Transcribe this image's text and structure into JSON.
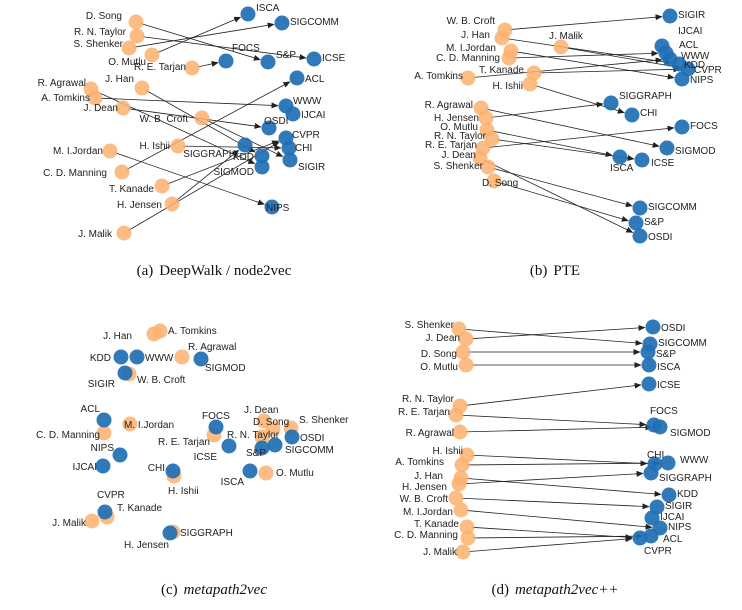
{
  "colors": {
    "author": "#fbb06e",
    "venue": "#1f6fb4",
    "edge": "#222222"
  },
  "panels": [
    {
      "caption_prefix": "(a)",
      "caption": "DeepWalk / node2vec",
      "caption_italic": false,
      "nodes": [
        {
          "id": "a_dsong",
          "label": "D. Song",
          "type": "author"
        },
        {
          "id": "a_rnt",
          "label": "R. N. Taylor",
          "type": "author"
        },
        {
          "id": "a_ssh",
          "label": "S. Shenker",
          "type": "author"
        },
        {
          "id": "a_om",
          "label": "O. Mutlu",
          "type": "author"
        },
        {
          "id": "a_ret",
          "label": "R. E. Tarjan",
          "type": "author"
        },
        {
          "id": "a_jh",
          "label": "J. Han",
          "type": "author"
        },
        {
          "id": "a_ra",
          "label": "R. Agrawal",
          "type": "author"
        },
        {
          "id": "a_at",
          "label": "A. Tomkins",
          "type": "author"
        },
        {
          "id": "a_jd",
          "label": "J. Dean",
          "type": "author"
        },
        {
          "id": "a_wbc",
          "label": "W. B. Croft",
          "type": "author"
        },
        {
          "id": "a_mij",
          "label": "M. I.Jordan",
          "type": "author"
        },
        {
          "id": "a_hi",
          "label": "H. Ishii",
          "type": "author"
        },
        {
          "id": "a_cdm",
          "label": "C. D. Manning",
          "type": "author"
        },
        {
          "id": "a_tk",
          "label": "T. Kanade",
          "type": "author"
        },
        {
          "id": "a_hj",
          "label": "H. Jensen",
          "type": "author"
        },
        {
          "id": "a_jm",
          "label": "J. Malik",
          "type": "author"
        },
        {
          "id": "v_isca",
          "label": "ISCA",
          "type": "venue"
        },
        {
          "id": "v_sigcomm",
          "label": "SIGCOMM",
          "type": "venue"
        },
        {
          "id": "v_focs",
          "label": "FOCS",
          "type": "venue"
        },
        {
          "id": "v_sp",
          "label": "S&P",
          "type": "venue"
        },
        {
          "id": "v_icse",
          "label": "ICSE",
          "type": "venue"
        },
        {
          "id": "v_acl",
          "label": "ACL",
          "type": "venue"
        },
        {
          "id": "v_www",
          "label": "WWW",
          "type": "venue"
        },
        {
          "id": "v_ijcai",
          "label": "IJCAI",
          "type": "venue"
        },
        {
          "id": "v_osdi",
          "label": "OSDI",
          "type": "venue"
        },
        {
          "id": "v_cvpr",
          "label": "CVPR",
          "type": "venue"
        },
        {
          "id": "v_chi",
          "label": "CHI",
          "type": "venue"
        },
        {
          "id": "v_siggraph",
          "label": "SIGGRAPH",
          "type": "venue"
        },
        {
          "id": "v_kdd",
          "label": "KDD",
          "type": "venue"
        },
        {
          "id": "v_sigmod",
          "label": "SIGMOD",
          "type": "venue"
        },
        {
          "id": "v_sigir",
          "label": "SIGIR",
          "type": "venue"
        },
        {
          "id": "v_nips",
          "label": "NIPS",
          "type": "venue"
        }
      ]
    },
    {
      "caption_prefix": "(b)",
      "caption": "PTE",
      "caption_italic": false,
      "nodes": [
        {
          "id": "a_wbc",
          "label": "W. B. Croft",
          "type": "author"
        },
        {
          "id": "a_jh",
          "label": "J. Han",
          "type": "author"
        },
        {
          "id": "a_mij",
          "label": "M. I.Jordan",
          "type": "author"
        },
        {
          "id": "a_cdm",
          "label": "C. D. Manning",
          "type": "author"
        },
        {
          "id": "a_jm",
          "label": "J. Malik",
          "type": "author"
        },
        {
          "id": "a_at",
          "label": "A. Tomkins",
          "type": "author"
        },
        {
          "id": "a_tk",
          "label": "T. Kanade",
          "type": "author"
        },
        {
          "id": "a_hi",
          "label": "H. Ishii",
          "type": "author"
        },
        {
          "id": "a_ra",
          "label": "R. Agrawal",
          "type": "author"
        },
        {
          "id": "a_hj",
          "label": "H. Jensen",
          "type": "author"
        },
        {
          "id": "a_om",
          "label": "O. Mutlu",
          "type": "author"
        },
        {
          "id": "a_rnt",
          "label": "R. N. Taylor",
          "type": "author"
        },
        {
          "id": "a_ret",
          "label": "R. E. Tarjan",
          "type": "author"
        },
        {
          "id": "a_jd",
          "label": "J. Dean",
          "type": "author"
        },
        {
          "id": "a_ssh",
          "label": "S. Shenker",
          "type": "author"
        },
        {
          "id": "a_dsong",
          "label": "D. Song",
          "type": "author"
        },
        {
          "id": "v_sigir",
          "label": "SIGIR",
          "type": "venue"
        },
        {
          "id": "v_ijcai",
          "label": "IJCAI",
          "type": "venue"
        },
        {
          "id": "v_acl",
          "label": "ACL",
          "type": "venue"
        },
        {
          "id": "v_www",
          "label": "WWW",
          "type": "venue"
        },
        {
          "id": "v_kdd",
          "label": "KDD",
          "type": "venue"
        },
        {
          "id": "v_cvpr",
          "label": "CVPR",
          "type": "venue"
        },
        {
          "id": "v_nips",
          "label": "NIPS",
          "type": "venue"
        },
        {
          "id": "v_siggraph",
          "label": "SIGGRAPH",
          "type": "venue"
        },
        {
          "id": "v_chi",
          "label": "CHI",
          "type": "venue"
        },
        {
          "id": "v_focs",
          "label": "FOCS",
          "type": "venue"
        },
        {
          "id": "v_isca",
          "label": "ISCA",
          "type": "venue"
        },
        {
          "id": "v_icse",
          "label": "ICSE",
          "type": "venue"
        },
        {
          "id": "v_sigmod",
          "label": "SIGMOD",
          "type": "venue"
        },
        {
          "id": "v_sigcomm",
          "label": "SIGCOMM",
          "type": "venue"
        },
        {
          "id": "v_sp",
          "label": "S&P",
          "type": "venue"
        },
        {
          "id": "v_osdi",
          "label": "OSDI",
          "type": "venue"
        }
      ]
    },
    {
      "caption_prefix": "(c)",
      "caption": "metapath2vec",
      "caption_italic": true,
      "nodes": [
        {
          "id": "a_jh",
          "label": "J. Han",
          "type": "author"
        },
        {
          "id": "a_at",
          "label": "A. Tomkins",
          "type": "author"
        },
        {
          "id": "a_ra",
          "label": "R. Agrawal",
          "type": "author"
        },
        {
          "id": "v_kdd",
          "label": "KDD",
          "type": "venue"
        },
        {
          "id": "v_www",
          "label": "WWW",
          "type": "venue"
        },
        {
          "id": "v_sigmod",
          "label": "SIGMOD",
          "type": "venue"
        },
        {
          "id": "v_sigir",
          "label": "SIGIR",
          "type": "venue"
        },
        {
          "id": "a_wbc",
          "label": "W. B. Croft",
          "type": "author"
        },
        {
          "id": "v_acl",
          "label": "ACL",
          "type": "venue"
        },
        {
          "id": "a_mij",
          "label": "M. I.Jordan",
          "type": "author"
        },
        {
          "id": "a_cdm",
          "label": "C. D. Manning",
          "type": "author"
        },
        {
          "id": "v_nips",
          "label": "NIPS",
          "type": "venue"
        },
        {
          "id": "v_ijcai",
          "label": "IJCAI",
          "type": "venue"
        },
        {
          "id": "v_focs",
          "label": "FOCS",
          "type": "venue"
        },
        {
          "id": "a_ret",
          "label": "R. E. Tarjan",
          "type": "author"
        },
        {
          "id": "a_jd",
          "label": "J. Dean",
          "type": "author"
        },
        {
          "id": "a_dsong",
          "label": "D. Song",
          "type": "author"
        },
        {
          "id": "a_rnt",
          "label": "R. N. Taylor",
          "type": "author"
        },
        {
          "id": "a_ssh",
          "label": "S. Shenker",
          "type": "author"
        },
        {
          "id": "v_osdi",
          "label": "OSDI",
          "type": "venue"
        },
        {
          "id": "v_icse",
          "label": "ICSE",
          "type": "venue"
        },
        {
          "id": "v_sp",
          "label": "S&P",
          "type": "venue"
        },
        {
          "id": "v_sigcomm",
          "label": "SIGCOMM",
          "type": "venue"
        },
        {
          "id": "v_chi",
          "label": "CHI",
          "type": "venue"
        },
        {
          "id": "a_hi",
          "label": "H. Ishii",
          "type": "author"
        },
        {
          "id": "v_isca",
          "label": "ISCA",
          "type": "venue"
        },
        {
          "id": "a_om",
          "label": "O. Mutlu",
          "type": "author"
        },
        {
          "id": "v_cvpr",
          "label": "CVPR",
          "type": "venue"
        },
        {
          "id": "a_tk",
          "label": "T. Kanade",
          "type": "author"
        },
        {
          "id": "a_jm",
          "label": "J. Malik",
          "type": "author"
        },
        {
          "id": "v_siggraph",
          "label": "SIGGRAPH",
          "type": "venue"
        },
        {
          "id": "a_hj",
          "label": "H. Jensen",
          "type": "author"
        }
      ]
    },
    {
      "caption_prefix": "(d)",
      "caption": "metapath2vec++",
      "caption_italic": true,
      "nodes": [
        {
          "id": "a_ssh",
          "label": "S. Shenker",
          "type": "author"
        },
        {
          "id": "a_jd",
          "label": "J. Dean",
          "type": "author"
        },
        {
          "id": "a_dsong",
          "label": "D. Song",
          "type": "author"
        },
        {
          "id": "a_om",
          "label": "O. Mutlu",
          "type": "author"
        },
        {
          "id": "v_osdi",
          "label": "OSDI",
          "type": "venue"
        },
        {
          "id": "v_sigcomm",
          "label": "SIGCOMM",
          "type": "venue"
        },
        {
          "id": "v_sp",
          "label": "S&P",
          "type": "venue"
        },
        {
          "id": "v_isca",
          "label": "ISCA",
          "type": "venue"
        },
        {
          "id": "v_icse",
          "label": "ICSE",
          "type": "venue"
        },
        {
          "id": "a_rnt",
          "label": "R. N. Taylor",
          "type": "author"
        },
        {
          "id": "a_ret",
          "label": "R. E. Tarjan",
          "type": "author"
        },
        {
          "id": "a_ra",
          "label": "R. Agrawal",
          "type": "author"
        },
        {
          "id": "v_focs",
          "label": "FOCS",
          "type": "venue"
        },
        {
          "id": "v_sigmod",
          "label": "SIGMOD",
          "type": "venue"
        },
        {
          "id": "a_hi",
          "label": "H. Ishii",
          "type": "author"
        },
        {
          "id": "a_at",
          "label": "A. Tomkins",
          "type": "author"
        },
        {
          "id": "a_jh",
          "label": "J. Han",
          "type": "author"
        },
        {
          "id": "a_hj",
          "label": "H. Jensen",
          "type": "author"
        },
        {
          "id": "a_wbc",
          "label": "W. B. Croft",
          "type": "author"
        },
        {
          "id": "a_mij",
          "label": "M. I.Jordan",
          "type": "author"
        },
        {
          "id": "a_tk",
          "label": "T. Kanade",
          "type": "author"
        },
        {
          "id": "a_cdm",
          "label": "C. D. Manning",
          "type": "author"
        },
        {
          "id": "a_jm",
          "label": "J. Malik",
          "type": "author"
        },
        {
          "id": "v_chi",
          "label": "CHI",
          "type": "venue"
        },
        {
          "id": "v_www",
          "label": "WWW",
          "type": "venue"
        },
        {
          "id": "v_siggraph",
          "label": "SIGGRAPH",
          "type": "venue"
        },
        {
          "id": "v_kdd",
          "label": "KDD",
          "type": "venue"
        },
        {
          "id": "v_sigir",
          "label": "SIGIR",
          "type": "venue"
        },
        {
          "id": "v_ijcai",
          "label": "IJCAI",
          "type": "venue"
        },
        {
          "id": "v_nips",
          "label": "NIPS",
          "type": "venue"
        },
        {
          "id": "v_acl",
          "label": "ACL",
          "type": "venue"
        },
        {
          "id": "v_cvpr",
          "label": "CVPR",
          "type": "venue"
        }
      ]
    }
  ],
  "edges": [
    [
      "a_om",
      "v_isca"
    ],
    [
      "a_rnt",
      "v_icse"
    ],
    [
      "a_ret",
      "v_focs"
    ],
    [
      "a_ssh",
      "v_sigcomm"
    ],
    [
      "a_dsong",
      "v_sp"
    ],
    [
      "a_jd",
      "v_osdi"
    ],
    [
      "a_hi",
      "v_chi"
    ],
    [
      "a_tk",
      "v_cvpr"
    ],
    [
      "a_jm",
      "v_cvpr"
    ],
    [
      "a_mij",
      "v_nips"
    ],
    [
      "a_cdm",
      "v_acl"
    ],
    [
      "a_at",
      "v_www"
    ],
    [
      "a_ra",
      "v_sigmod"
    ],
    [
      "a_jh",
      "v_kdd"
    ],
    [
      "a_wbc",
      "v_sigir"
    ],
    [
      "a_hj",
      "v_siggraph"
    ]
  ]
}
